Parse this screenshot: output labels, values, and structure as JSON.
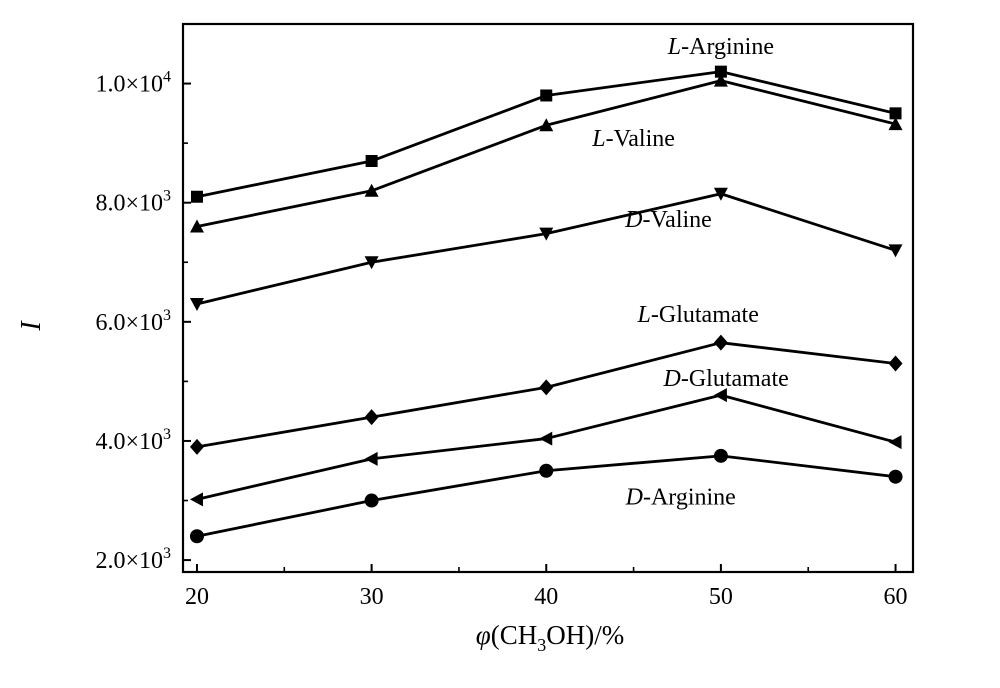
{
  "chart_data": {
    "type": "line",
    "title": "",
    "xlabel": "φ(CH3OH)/%",
    "ylabel": "I",
    "x": [
      20,
      30,
      40,
      50,
      60
    ],
    "xlim": [
      19.2,
      61
    ],
    "ylim": [
      1800,
      11000
    ],
    "grid": false,
    "legend": "none",
    "x_ticks": [
      "20",
      "30",
      "40",
      "50",
      "60"
    ],
    "y_ticks": [
      {
        "value": 2000,
        "mantissa": "2.0",
        "times": "×",
        "base": "10",
        "exp": "3"
      },
      {
        "value": 4000,
        "mantissa": "4.0",
        "times": "×",
        "base": "10",
        "exp": "3"
      },
      {
        "value": 6000,
        "mantissa": "6.0",
        "times": "×",
        "base": "10",
        "exp": "3"
      },
      {
        "value": 8000,
        "mantissa": "8.0",
        "times": "×",
        "base": "10",
        "exp": "3"
      },
      {
        "value": 10000,
        "mantissa": "1.0",
        "times": "×",
        "base": "10",
        "exp": "4"
      }
    ],
    "series": [
      {
        "name": "L-Arginine",
        "prefix": "L",
        "rest": "-Arginine",
        "marker": "square",
        "values": [
          8100,
          8700,
          9800,
          10200,
          9500
        ],
        "label_at": [
          50,
          10500
        ]
      },
      {
        "name": "L-Valine",
        "prefix": "L",
        "rest": "-Valine",
        "marker": "triangle-up",
        "values": [
          7600,
          8200,
          9300,
          10050,
          9320
        ],
        "label_at": [
          45,
          8950
        ]
      },
      {
        "name": "D-Valine",
        "prefix": "D",
        "rest": "-Valine",
        "marker": "triangle-down",
        "values": [
          6300,
          7000,
          7480,
          8150,
          7200
        ],
        "label_at": [
          47,
          7590
        ]
      },
      {
        "name": "L-Glutamate",
        "prefix": "L",
        "rest": "-Glutamate",
        "marker": "diamond",
        "values": [
          3900,
          4400,
          4900,
          5650,
          5300
        ],
        "label_at": [
          48.7,
          6000
        ]
      },
      {
        "name": "D-Glutamate",
        "prefix": "D",
        "rest": "-Glutamate",
        "marker": "triangle-left",
        "values": [
          3020,
          3700,
          4040,
          4770,
          3980
        ],
        "label_at": [
          50.3,
          4920
        ]
      },
      {
        "name": "D-Arginine",
        "prefix": "D",
        "rest": "-Arginine",
        "marker": "circle",
        "values": [
          2400,
          3000,
          3500,
          3750,
          3400
        ],
        "label_at": [
          47.7,
          2930
        ]
      }
    ]
  }
}
